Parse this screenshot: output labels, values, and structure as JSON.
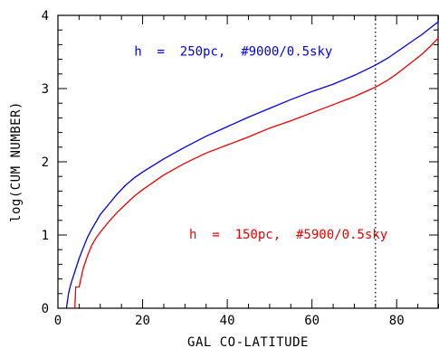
{
  "chart_data": {
    "type": "line",
    "xlabel": "GAL CO-LATITUDE",
    "ylabel": "log(CUM NUMBER)",
    "xlim": [
      0,
      90
    ],
    "ylim": [
      0,
      4
    ],
    "x_ticks": [
      0,
      20,
      40,
      60,
      80
    ],
    "y_ticks": [
      0,
      1,
      2,
      3,
      4
    ],
    "grid": false,
    "reference_lines": [
      {
        "orientation": "vertical",
        "x": 75,
        "style": "dotted",
        "color": "#000000"
      }
    ],
    "series": [
      {
        "annotation": "h  =  250pc,  #9000/0.5sky",
        "color": "#0000ee",
        "label_at": [
          18,
          3.45
        ],
        "x": [
          2,
          2.5,
          3,
          4,
          5,
          6,
          7,
          8,
          9,
          10,
          12,
          14,
          16,
          18,
          20,
          25,
          30,
          35,
          40,
          45,
          50,
          55,
          60,
          65,
          70,
          75,
          78,
          80,
          82,
          84,
          86,
          88,
          90
        ],
        "y": [
          0.0,
          0.2,
          0.32,
          0.5,
          0.68,
          0.83,
          0.97,
          1.08,
          1.18,
          1.28,
          1.42,
          1.56,
          1.68,
          1.78,
          1.86,
          2.04,
          2.2,
          2.35,
          2.48,
          2.61,
          2.73,
          2.85,
          2.96,
          3.06,
          3.18,
          3.32,
          3.42,
          3.5,
          3.58,
          3.66,
          3.74,
          3.83,
          3.92
        ]
      },
      {
        "annotation": "h  =  150pc,  #5900/0.5sky",
        "color": "#ee0000",
        "label_at": [
          31,
          0.95
        ],
        "x": [
          4,
          4.2,
          5,
          5.5,
          6,
          7,
          8,
          9,
          10,
          12,
          14,
          16,
          18,
          20,
          25,
          30,
          35,
          40,
          45,
          50,
          55,
          60,
          65,
          70,
          75,
          78,
          80,
          82,
          84,
          86,
          88,
          90
        ],
        "y": [
          0.0,
          0.29,
          0.29,
          0.42,
          0.55,
          0.72,
          0.86,
          0.96,
          1.04,
          1.18,
          1.31,
          1.42,
          1.53,
          1.62,
          1.82,
          1.98,
          2.12,
          2.23,
          2.34,
          2.46,
          2.56,
          2.67,
          2.78,
          2.89,
          3.02,
          3.12,
          3.2,
          3.29,
          3.38,
          3.47,
          3.58,
          3.7
        ]
      }
    ]
  }
}
